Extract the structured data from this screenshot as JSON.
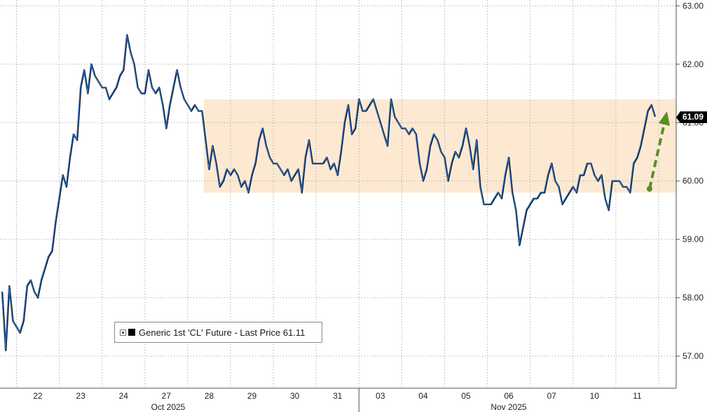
{
  "chart_data": {
    "type": "line",
    "series": [
      {
        "name": "Generic 1st 'CL' Future - Last Price",
        "points": [
          [
            "2025-10-21T16:00",
            58.1
          ],
          [
            "2025-10-21T18:00",
            57.1
          ],
          [
            "2025-10-21T20:00",
            58.2
          ],
          [
            "2025-10-21T22:00",
            57.6
          ],
          [
            "2025-10-22T00:00",
            57.5
          ],
          [
            "2025-10-22T02:00",
            57.4
          ],
          [
            "2025-10-22T04:00",
            57.6
          ],
          [
            "2025-10-22T06:00",
            58.2
          ],
          [
            "2025-10-22T08:00",
            58.3
          ],
          [
            "2025-10-22T10:00",
            58.1
          ],
          [
            "2025-10-22T12:00",
            58.0
          ],
          [
            "2025-10-22T14:00",
            58.3
          ],
          [
            "2025-10-22T16:00",
            58.5
          ],
          [
            "2025-10-22T18:00",
            58.7
          ],
          [
            "2025-10-22T20:00",
            58.8
          ],
          [
            "2025-10-22T22:00",
            59.3
          ],
          [
            "2025-10-23T00:00",
            59.7
          ],
          [
            "2025-10-23T02:00",
            60.1
          ],
          [
            "2025-10-23T04:00",
            59.9
          ],
          [
            "2025-10-23T06:00",
            60.4
          ],
          [
            "2025-10-23T08:00",
            60.8
          ],
          [
            "2025-10-23T10:00",
            60.7
          ],
          [
            "2025-10-23T12:00",
            61.6
          ],
          [
            "2025-10-23T14:00",
            61.9
          ],
          [
            "2025-10-23T16:00",
            61.5
          ],
          [
            "2025-10-23T18:00",
            62.0
          ],
          [
            "2025-10-23T20:00",
            61.8
          ],
          [
            "2025-10-23T22:00",
            61.7
          ],
          [
            "2025-10-24T00:00",
            61.6
          ],
          [
            "2025-10-24T02:00",
            61.6
          ],
          [
            "2025-10-24T04:00",
            61.4
          ],
          [
            "2025-10-24T06:00",
            61.5
          ],
          [
            "2025-10-24T08:00",
            61.6
          ],
          [
            "2025-10-24T10:00",
            61.8
          ],
          [
            "2025-10-24T12:00",
            61.9
          ],
          [
            "2025-10-24T14:00",
            62.5
          ],
          [
            "2025-10-24T16:00",
            62.2
          ],
          [
            "2025-10-24T18:00",
            62.0
          ],
          [
            "2025-10-24T20:00",
            61.6
          ],
          [
            "2025-10-24T22:00",
            61.5
          ],
          [
            "2025-10-27T00:00",
            61.5
          ],
          [
            "2025-10-27T02:00",
            61.9
          ],
          [
            "2025-10-27T04:00",
            61.6
          ],
          [
            "2025-10-27T06:00",
            61.5
          ],
          [
            "2025-10-27T08:00",
            61.6
          ],
          [
            "2025-10-27T10:00",
            61.3
          ],
          [
            "2025-10-27T12:00",
            60.9
          ],
          [
            "2025-10-27T14:00",
            61.3
          ],
          [
            "2025-10-27T16:00",
            61.6
          ],
          [
            "2025-10-27T18:00",
            61.9
          ],
          [
            "2025-10-27T20:00",
            61.6
          ],
          [
            "2025-10-27T22:00",
            61.4
          ],
          [
            "2025-10-28T00:00",
            61.3
          ],
          [
            "2025-10-28T02:00",
            61.2
          ],
          [
            "2025-10-28T04:00",
            61.3
          ],
          [
            "2025-10-28T06:00",
            61.2
          ],
          [
            "2025-10-28T08:00",
            61.2
          ],
          [
            "2025-10-28T10:00",
            60.7
          ],
          [
            "2025-10-28T12:00",
            60.2
          ],
          [
            "2025-10-28T14:00",
            60.6
          ],
          [
            "2025-10-28T16:00",
            60.3
          ],
          [
            "2025-10-28T18:00",
            59.9
          ],
          [
            "2025-10-28T20:00",
            60.0
          ],
          [
            "2025-10-28T22:00",
            60.2
          ],
          [
            "2025-10-29T00:00",
            60.1
          ],
          [
            "2025-10-29T02:00",
            60.2
          ],
          [
            "2025-10-29T04:00",
            60.1
          ],
          [
            "2025-10-29T06:00",
            59.9
          ],
          [
            "2025-10-29T08:00",
            60.0
          ],
          [
            "2025-10-29T10:00",
            59.8
          ],
          [
            "2025-10-29T12:00",
            60.1
          ],
          [
            "2025-10-29T14:00",
            60.3
          ],
          [
            "2025-10-29T16:00",
            60.7
          ],
          [
            "2025-10-29T18:00",
            60.9
          ],
          [
            "2025-10-29T20:00",
            60.6
          ],
          [
            "2025-10-29T22:00",
            60.4
          ],
          [
            "2025-10-30T00:00",
            60.3
          ],
          [
            "2025-10-30T02:00",
            60.3
          ],
          [
            "2025-10-30T04:00",
            60.2
          ],
          [
            "2025-10-30T06:00",
            60.1
          ],
          [
            "2025-10-30T08:00",
            60.2
          ],
          [
            "2025-10-30T10:00",
            60.0
          ],
          [
            "2025-10-30T12:00",
            60.1
          ],
          [
            "2025-10-30T14:00",
            60.2
          ],
          [
            "2025-10-30T16:00",
            59.8
          ],
          [
            "2025-10-30T18:00",
            60.4
          ],
          [
            "2025-10-30T20:00",
            60.7
          ],
          [
            "2025-10-30T22:00",
            60.3
          ],
          [
            "2025-10-31T00:00",
            60.3
          ],
          [
            "2025-10-31T02:00",
            60.3
          ],
          [
            "2025-10-31T04:00",
            60.3
          ],
          [
            "2025-10-31T06:00",
            60.4
          ],
          [
            "2025-10-31T08:00",
            60.2
          ],
          [
            "2025-10-31T10:00",
            60.3
          ],
          [
            "2025-10-31T12:00",
            60.1
          ],
          [
            "2025-10-31T14:00",
            60.5
          ],
          [
            "2025-10-31T16:00",
            61.0
          ],
          [
            "2025-10-31T18:00",
            61.3
          ],
          [
            "2025-10-31T20:00",
            60.8
          ],
          [
            "2025-10-31T22:00",
            60.9
          ],
          [
            "2025-11-03T00:00",
            61.4
          ],
          [
            "2025-11-03T02:00",
            61.2
          ],
          [
            "2025-11-03T04:00",
            61.2
          ],
          [
            "2025-11-03T06:00",
            61.3
          ],
          [
            "2025-11-03T08:00",
            61.4
          ],
          [
            "2025-11-03T10:00",
            61.2
          ],
          [
            "2025-11-03T12:00",
            61.0
          ],
          [
            "2025-11-03T14:00",
            60.8
          ],
          [
            "2025-11-03T16:00",
            60.6
          ],
          [
            "2025-11-03T18:00",
            61.4
          ],
          [
            "2025-11-03T20:00",
            61.1
          ],
          [
            "2025-11-03T22:00",
            61.0
          ],
          [
            "2025-11-04T00:00",
            60.9
          ],
          [
            "2025-11-04T02:00",
            60.9
          ],
          [
            "2025-11-04T04:00",
            60.8
          ],
          [
            "2025-11-04T06:00",
            60.9
          ],
          [
            "2025-11-04T08:00",
            60.8
          ],
          [
            "2025-11-04T10:00",
            60.3
          ],
          [
            "2025-11-04T12:00",
            60.0
          ],
          [
            "2025-11-04T14:00",
            60.2
          ],
          [
            "2025-11-04T16:00",
            60.6
          ],
          [
            "2025-11-04T18:00",
            60.8
          ],
          [
            "2025-11-04T20:00",
            60.7
          ],
          [
            "2025-11-04T22:00",
            60.5
          ],
          [
            "2025-11-05T00:00",
            60.4
          ],
          [
            "2025-11-05T02:00",
            60.0
          ],
          [
            "2025-11-05T04:00",
            60.3
          ],
          [
            "2025-11-05T06:00",
            60.5
          ],
          [
            "2025-11-05T08:00",
            60.4
          ],
          [
            "2025-11-05T10:00",
            60.6
          ],
          [
            "2025-11-05T12:00",
            60.9
          ],
          [
            "2025-11-05T14:00",
            60.6
          ],
          [
            "2025-11-05T16:00",
            60.2
          ],
          [
            "2025-11-05T18:00",
            60.7
          ],
          [
            "2025-11-05T20:00",
            59.9
          ],
          [
            "2025-11-05T22:00",
            59.6
          ],
          [
            "2025-11-06T00:00",
            59.6
          ],
          [
            "2025-11-06T02:00",
            59.6
          ],
          [
            "2025-11-06T04:00",
            59.7
          ],
          [
            "2025-11-06T06:00",
            59.8
          ],
          [
            "2025-11-06T08:00",
            59.7
          ],
          [
            "2025-11-06T10:00",
            60.1
          ],
          [
            "2025-11-06T12:00",
            60.4
          ],
          [
            "2025-11-06T14:00",
            59.8
          ],
          [
            "2025-11-06T16:00",
            59.5
          ],
          [
            "2025-11-06T18:00",
            58.9
          ],
          [
            "2025-11-06T20:00",
            59.2
          ],
          [
            "2025-11-06T22:00",
            59.5
          ],
          [
            "2025-11-07T00:00",
            59.6
          ],
          [
            "2025-11-07T02:00",
            59.7
          ],
          [
            "2025-11-07T04:00",
            59.7
          ],
          [
            "2025-11-07T06:00",
            59.8
          ],
          [
            "2025-11-07T08:00",
            59.8
          ],
          [
            "2025-11-07T10:00",
            60.1
          ],
          [
            "2025-11-07T12:00",
            60.3
          ],
          [
            "2025-11-07T14:00",
            60.0
          ],
          [
            "2025-11-07T16:00",
            59.9
          ],
          [
            "2025-11-07T18:00",
            59.6
          ],
          [
            "2025-11-07T20:00",
            59.7
          ],
          [
            "2025-11-07T22:00",
            59.8
          ],
          [
            "2025-11-10T00:00",
            59.9
          ],
          [
            "2025-11-10T02:00",
            59.8
          ],
          [
            "2025-11-10T04:00",
            60.1
          ],
          [
            "2025-11-10T06:00",
            60.1
          ],
          [
            "2025-11-10T08:00",
            60.3
          ],
          [
            "2025-11-10T10:00",
            60.3
          ],
          [
            "2025-11-10T12:00",
            60.1
          ],
          [
            "2025-11-10T14:00",
            60.0
          ],
          [
            "2025-11-10T16:00",
            60.1
          ],
          [
            "2025-11-10T18:00",
            59.7
          ],
          [
            "2025-11-10T20:00",
            59.5
          ],
          [
            "2025-11-10T22:00",
            60.0
          ],
          [
            "2025-11-11T00:00",
            60.0
          ],
          [
            "2025-11-11T02:00",
            60.0
          ],
          [
            "2025-11-11T04:00",
            59.9
          ],
          [
            "2025-11-11T06:00",
            59.9
          ],
          [
            "2025-11-11T08:00",
            59.8
          ],
          [
            "2025-11-11T10:00",
            60.3
          ],
          [
            "2025-11-11T12:00",
            60.4
          ],
          [
            "2025-11-11T14:00",
            60.6
          ],
          [
            "2025-11-11T16:00",
            60.9
          ],
          [
            "2025-11-11T18:00",
            61.2
          ],
          [
            "2025-11-11T20:00",
            61.3
          ],
          [
            "2025-11-11T22:00",
            61.1
          ]
        ]
      }
    ],
    "legend": {
      "position": "bottom-left",
      "last_value": "61.11"
    },
    "last_price_tag": "61.09",
    "y_axis": {
      "side": "right",
      "tick_labels": [
        "57.00",
        "58.00",
        "59.00",
        "60.00",
        "61.00",
        "62.00",
        "63.00"
      ],
      "range": [
        56.45,
        63.1
      ]
    },
    "x_axis": {
      "tick_labels": [
        "22",
        "23",
        "24",
        "27",
        "28",
        "29",
        "30",
        "31",
        "03",
        "04",
        "05",
        "06",
        "07",
        "10",
        "11"
      ],
      "month_labels": [
        "Oct 2025",
        "Nov 2025"
      ]
    },
    "grid": true,
    "range_band": {
      "low": 59.8,
      "high": 61.4,
      "start": "2025-10-28T09:00"
    },
    "colors": {
      "line": "#3573c6",
      "line_shadow": "#111a26",
      "band": "#fde9d2",
      "arrow": "#5b8c23",
      "tag_background": "#000000"
    }
  }
}
